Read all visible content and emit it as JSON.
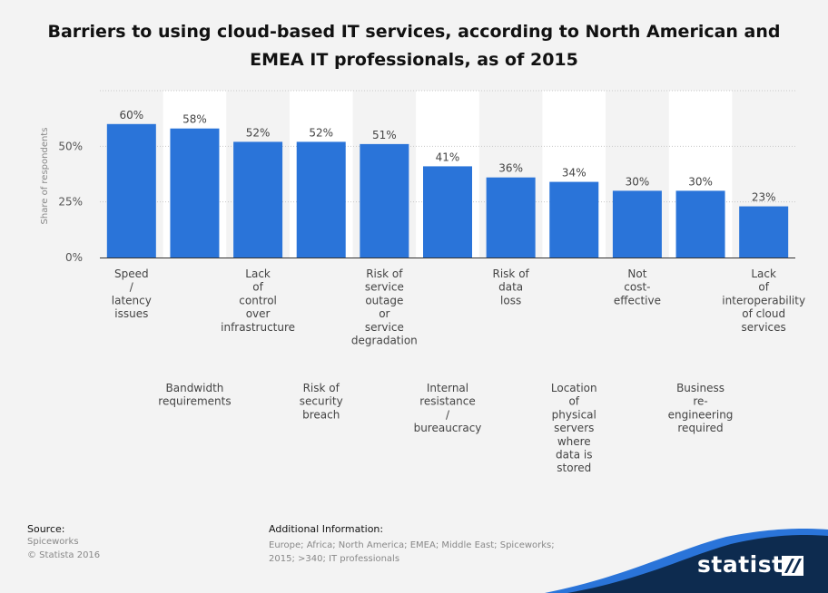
{
  "title": "Barriers to using cloud-based IT services, according to North American and EMEA IT professionals, as of 2015",
  "source": {
    "heading": "Source:",
    "lines": [
      "Spiceworks",
      "© Statista 2016"
    ]
  },
  "additional_info": {
    "heading": "Additional Information:",
    "text": "Europe; Africa; North America; EMEA; Middle East; Spiceworks; 2015; >340; IT professionals"
  },
  "brand": {
    "name": "statista",
    "icon": "statista-logo-icon"
  },
  "colors": {
    "bar": "#2a74d9",
    "background": "#f3f3f3",
    "band": "#ffffff",
    "footer_wave": "#0d2b4f",
    "footer_accent": "#2a74d9"
  },
  "chart_data": {
    "type": "bar",
    "ylabel": "Share of respondents",
    "xlabel": "",
    "ylim": [
      0,
      75
    ],
    "yticks": [
      "0%",
      "25%",
      "50%"
    ],
    "grid": true,
    "categories": [
      "Speed / latency issues",
      "Bandwidth requirements",
      "Lack of control over infrastructure",
      "Risk of security breach",
      "Risk of service outage or service degradation",
      "Internal resistance / bureaucracy",
      "Risk of data loss",
      "Location of physical servers where data is stored",
      "Not cost-effective",
      "Business re-engineering required",
      "Lack of interoperability of cloud services"
    ],
    "category_lines": [
      [
        "Speed",
        "/",
        "latency",
        "issues"
      ],
      [
        "Bandwidth",
        "requirements"
      ],
      [
        "Lack",
        "of",
        "control",
        "over",
        "infrastructure"
      ],
      [
        "Risk of",
        "security",
        "breach"
      ],
      [
        "Risk of",
        "service",
        "outage",
        "or",
        "service",
        "degradation"
      ],
      [
        "Internal",
        "resistance",
        "/",
        "bureaucracy"
      ],
      [
        "Risk of",
        "data",
        "loss"
      ],
      [
        "Location",
        "of",
        "physical",
        "servers",
        "where",
        "data is",
        "stored"
      ],
      [
        "Not",
        "cost-",
        "effective"
      ],
      [
        "Business",
        "re-",
        "engineering",
        "required"
      ],
      [
        "Lack",
        "of",
        "interoperability",
        "of cloud",
        "services"
      ]
    ],
    "values": [
      60,
      58,
      52,
      52,
      51,
      41,
      36,
      34,
      30,
      30,
      23
    ],
    "data_labels": [
      "60%",
      "58%",
      "52%",
      "52%",
      "51%",
      "41%",
      "36%",
      "34%",
      "30%",
      "30%",
      "23%"
    ]
  }
}
